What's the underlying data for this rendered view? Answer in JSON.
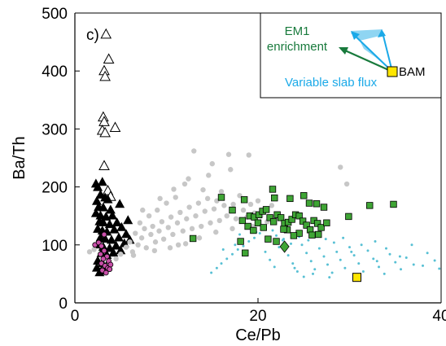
{
  "chart_data": {
    "type": "scatter",
    "panel_label": "c)",
    "xlabel": "Ce/Pb",
    "ylabel": "Ba/Th",
    "xlim": [
      0,
      40
    ],
    "ylim": [
      0,
      500
    ],
    "x_ticks": [
      "0",
      "20",
      "40"
    ],
    "y_ticks": [
      "0",
      "100",
      "200",
      "300",
      "400",
      "500"
    ],
    "grid": false,
    "legend": "none",
    "series": [
      {
        "marker": "triangle-open",
        "color": "#000000",
        "points": [
          [
            3.4,
            463
          ],
          [
            3.7,
            420
          ],
          [
            3.2,
            400
          ],
          [
            3.3,
            390
          ],
          [
            3.1,
            320
          ],
          [
            3.2,
            312
          ],
          [
            3.0,
            297
          ],
          [
            3.3,
            293
          ],
          [
            4.4,
            302
          ],
          [
            3.2,
            236
          ],
          [
            3.6,
            193
          ],
          [
            3.9,
            183
          ]
        ]
      },
      {
        "marker": "triangle-filled",
        "color": "#000000",
        "points": [
          [
            2.5,
            199
          ],
          [
            2.8,
            186
          ],
          [
            3.3,
            181
          ],
          [
            2.4,
            175
          ],
          [
            3.6,
            178
          ],
          [
            2.6,
            165
          ],
          [
            3.1,
            164
          ],
          [
            3.9,
            160
          ],
          [
            2.3,
            154
          ],
          [
            2.8,
            150
          ],
          [
            3.4,
            148
          ],
          [
            4.1,
            150
          ],
          [
            2.7,
            140
          ],
          [
            3.1,
            138
          ],
          [
            3.8,
            135
          ],
          [
            4.6,
            138
          ],
          [
            2.5,
            127
          ],
          [
            3.0,
            124
          ],
          [
            3.5,
            122
          ],
          [
            4.3,
            126
          ],
          [
            5.1,
            130
          ],
          [
            2.8,
            112
          ],
          [
            3.3,
            110
          ],
          [
            4.0,
            108
          ],
          [
            4.8,
            112
          ],
          [
            5.6,
            118
          ],
          [
            2.6,
            100
          ],
          [
            3.1,
            96
          ],
          [
            3.8,
            94
          ],
          [
            4.5,
            98
          ],
          [
            5.4,
            102
          ],
          [
            6.0,
            108
          ],
          [
            2.9,
            85
          ],
          [
            3.5,
            82
          ],
          [
            4.2,
            86
          ],
          [
            5.0,
            90
          ],
          [
            2.5,
            72
          ],
          [
            3.0,
            68
          ],
          [
            2.4,
            60
          ],
          [
            2.9,
            55
          ],
          [
            3.4,
            62
          ],
          [
            2.7,
            52
          ],
          [
            2.3,
            205
          ],
          [
            3.0,
            208
          ],
          [
            4.9,
            170
          ],
          [
            5.8,
            142
          ]
        ]
      },
      {
        "marker": "circle-small",
        "color": "#c7c7c7",
        "points": [
          [
            1.6,
            88
          ],
          [
            2.1,
            92
          ],
          [
            5.6,
            96
          ],
          [
            6.0,
            105
          ],
          [
            6.3,
            88
          ],
          [
            6.6,
            120
          ],
          [
            6.9,
            100
          ],
          [
            7.1,
            138
          ],
          [
            7.3,
            112
          ],
          [
            7.6,
            128
          ],
          [
            7.8,
            95
          ],
          [
            8.1,
            150
          ],
          [
            8.3,
            118
          ],
          [
            8.5,
            132
          ],
          [
            8.8,
            105
          ],
          [
            9.0,
            160
          ],
          [
            9.2,
            124
          ],
          [
            9.5,
            140
          ],
          [
            9.7,
            110
          ],
          [
            10.0,
            172
          ],
          [
            10.2,
            130
          ],
          [
            10.5,
            148
          ],
          [
            10.7,
            118
          ],
          [
            11.0,
            182
          ],
          [
            11.2,
            138
          ],
          [
            11.5,
            156
          ],
          [
            11.8,
            124
          ],
          [
            12.0,
            205
          ],
          [
            12.2,
            145
          ],
          [
            12.5,
            165
          ],
          [
            12.8,
            128
          ],
          [
            13.0,
            262
          ],
          [
            13.2,
            150
          ],
          [
            13.5,
            172
          ],
          [
            13.8,
            132
          ],
          [
            14.0,
            195
          ],
          [
            14.2,
            158
          ],
          [
            14.5,
            180
          ],
          [
            14.8,
            138
          ],
          [
            15.0,
            240
          ],
          [
            15.2,
            162
          ],
          [
            15.5,
            176
          ],
          [
            15.8,
            142
          ],
          [
            16.0,
            192
          ],
          [
            16.3,
            168
          ],
          [
            16.6,
            150
          ],
          [
            17.0,
            230
          ],
          [
            17.3,
            170
          ],
          [
            17.6,
            145
          ],
          [
            18.0,
            185
          ],
          [
            18.4,
            160
          ],
          [
            18.8,
            148
          ],
          [
            19.2,
            170
          ],
          [
            19.6,
            155
          ],
          [
            20.0,
            176
          ],
          [
            20.3,
            150
          ],
          [
            20.7,
            162
          ],
          [
            21.0,
            140
          ],
          [
            21.5,
            168
          ],
          [
            22.0,
            150
          ],
          [
            7.4,
            160
          ],
          [
            9.3,
            180
          ],
          [
            10.8,
            196
          ],
          [
            12.4,
            214
          ],
          [
            14.6,
            220
          ],
          [
            16.8,
            256
          ],
          [
            19.0,
            255
          ],
          [
            11.3,
            100
          ],
          [
            13.6,
            112
          ],
          [
            15.4,
            122
          ],
          [
            17.2,
            128
          ],
          [
            19.4,
            132
          ],
          [
            6.4,
            82
          ],
          [
            8.7,
            90
          ],
          [
            10.4,
            95
          ],
          [
            12.1,
            102
          ],
          [
            4.5,
            76
          ],
          [
            5.0,
            84
          ],
          [
            29.0,
            234
          ],
          [
            29.7,
            205
          ]
        ]
      },
      {
        "marker": "circle-small",
        "color": "#58c0d4",
        "points": [
          [
            14.9,
            52
          ],
          [
            15.5,
            60
          ],
          [
            16.0,
            68
          ],
          [
            16.6,
            76
          ],
          [
            17.2,
            84
          ],
          [
            17.8,
            92
          ],
          [
            18.4,
            98
          ],
          [
            19.0,
            106
          ],
          [
            19.6,
            112
          ],
          [
            20.2,
            120
          ],
          [
            20.8,
            88
          ],
          [
            21.3,
            74
          ],
          [
            21.8,
            62
          ],
          [
            22.3,
            96
          ],
          [
            22.8,
            110
          ],
          [
            23.3,
            82
          ],
          [
            23.8,
            68
          ],
          [
            24.3,
            54
          ],
          [
            24.8,
            100
          ],
          [
            25.3,
            86
          ],
          [
            25.8,
            72
          ],
          [
            26.2,
            58
          ],
          [
            26.7,
            94
          ],
          [
            27.2,
            80
          ],
          [
            27.6,
            66
          ],
          [
            28.1,
            52
          ],
          [
            28.6,
            88
          ],
          [
            29.0,
            74
          ],
          [
            29.5,
            60
          ],
          [
            30.0,
            96
          ],
          [
            30.5,
            82
          ],
          [
            31.0,
            68
          ],
          [
            31.5,
            54
          ],
          [
            32.0,
            90
          ],
          [
            32.6,
            76
          ],
          [
            33.2,
            62
          ],
          [
            33.8,
            50
          ],
          [
            34.4,
            84
          ],
          [
            35.0,
            70
          ],
          [
            35.6,
            58
          ],
          [
            36.2,
            78
          ],
          [
            37.0,
            66
          ],
          [
            38.0,
            64
          ],
          [
            39.3,
            73
          ],
          [
            39.8,
            59
          ],
          [
            20.5,
            130
          ],
          [
            21.6,
            125
          ],
          [
            22.7,
            108
          ],
          [
            23.6,
            102
          ],
          [
            24.5,
            114
          ],
          [
            25.5,
            108
          ],
          [
            26.5,
            120
          ],
          [
            27.4,
            110
          ],
          [
            28.3,
            104
          ],
          [
            29.3,
            112
          ],
          [
            30.2,
            88
          ],
          [
            31.3,
            100
          ],
          [
            32.8,
            106
          ],
          [
            34.0,
            94
          ],
          [
            35.5,
            80
          ],
          [
            36.8,
            100
          ],
          [
            38.5,
            86
          ],
          [
            25.0,
            45
          ],
          [
            27.8,
            44
          ],
          [
            30.8,
            40
          ],
          [
            33.0,
            72
          ],
          [
            18.0,
            118
          ],
          [
            19.8,
            122
          ],
          [
            22.0,
            116
          ],
          [
            17.5,
            100
          ],
          [
            16.2,
            92
          ],
          [
            23.0,
            130
          ],
          [
            24.0,
            60
          ],
          [
            26.0,
            50
          ]
        ]
      },
      {
        "marker": "square",
        "color": "#3fa535",
        "points": [
          [
            12.9,
            111
          ],
          [
            16.0,
            182
          ],
          [
            18.5,
            178
          ],
          [
            18.1,
            106
          ],
          [
            18.6,
            86
          ],
          [
            17.2,
            160
          ],
          [
            18.9,
            132
          ],
          [
            18.3,
            142
          ],
          [
            19.1,
            150
          ],
          [
            19.6,
            148
          ],
          [
            20.1,
            152
          ],
          [
            20.5,
            158
          ],
          [
            20.9,
            161
          ],
          [
            21.3,
            147
          ],
          [
            21.7,
            140
          ],
          [
            22.1,
            152
          ],
          [
            22.5,
            147
          ],
          [
            22.9,
            137
          ],
          [
            23.3,
            139
          ],
          [
            23.7,
            144
          ],
          [
            24.1,
            152
          ],
          [
            24.5,
            150
          ],
          [
            24.9,
            141
          ],
          [
            25.3,
            134
          ],
          [
            25.7,
            126
          ],
          [
            26.1,
            142
          ],
          [
            26.5,
            137
          ],
          [
            26.9,
            130
          ],
          [
            21.1,
            110
          ],
          [
            22.0,
            106
          ],
          [
            23.2,
            126
          ],
          [
            24.5,
            120
          ],
          [
            21.8,
            181
          ],
          [
            23.5,
            180
          ],
          [
            25.0,
            185
          ],
          [
            25.6,
            172
          ],
          [
            26.4,
            171
          ],
          [
            27.2,
            165
          ],
          [
            21.6,
            196
          ],
          [
            22.8,
            127
          ],
          [
            27.5,
            138
          ],
          [
            29.9,
            149
          ],
          [
            34.8,
            170
          ],
          [
            32.2,
            168
          ],
          [
            20.0,
            138
          ],
          [
            19.5,
            125
          ],
          [
            20.6,
            130
          ],
          [
            23.9,
            116
          ],
          [
            25.9,
            117
          ],
          [
            26.6,
            118
          ]
        ]
      },
      {
        "marker": "circle-open",
        "color": "#c94fa9",
        "points": [
          [
            2.2,
            100
          ],
          [
            2.6,
            104
          ],
          [
            2.9,
            98
          ],
          [
            3.2,
            90
          ],
          [
            2.8,
            84
          ],
          [
            3.5,
            80
          ],
          [
            3.1,
            76
          ],
          [
            3.7,
            72
          ],
          [
            2.9,
            68
          ],
          [
            3.3,
            64
          ],
          [
            3.6,
            60
          ],
          [
            3.9,
            66
          ],
          [
            3.0,
            56
          ],
          [
            3.4,
            52
          ],
          [
            3.8,
            58
          ],
          [
            3.2,
            118
          ]
        ]
      },
      {
        "marker": "diamond",
        "color": "#3fa535",
        "points": [
          [
            22.9,
            97
          ]
        ]
      },
      {
        "marker": "square-large",
        "color": "#ffe600",
        "points": [
          [
            30.8,
            44
          ]
        ]
      }
    ],
    "inset": {
      "labels": {
        "em1": [
          "EM1",
          "enrichment"
        ],
        "slab": "Variable slab flux",
        "bam": "BAM"
      },
      "colors": {
        "em1": "#187a3c",
        "slab": "#1aa9e8",
        "fan": "#8fd5f2",
        "bam": "#ffe600"
      }
    }
  }
}
